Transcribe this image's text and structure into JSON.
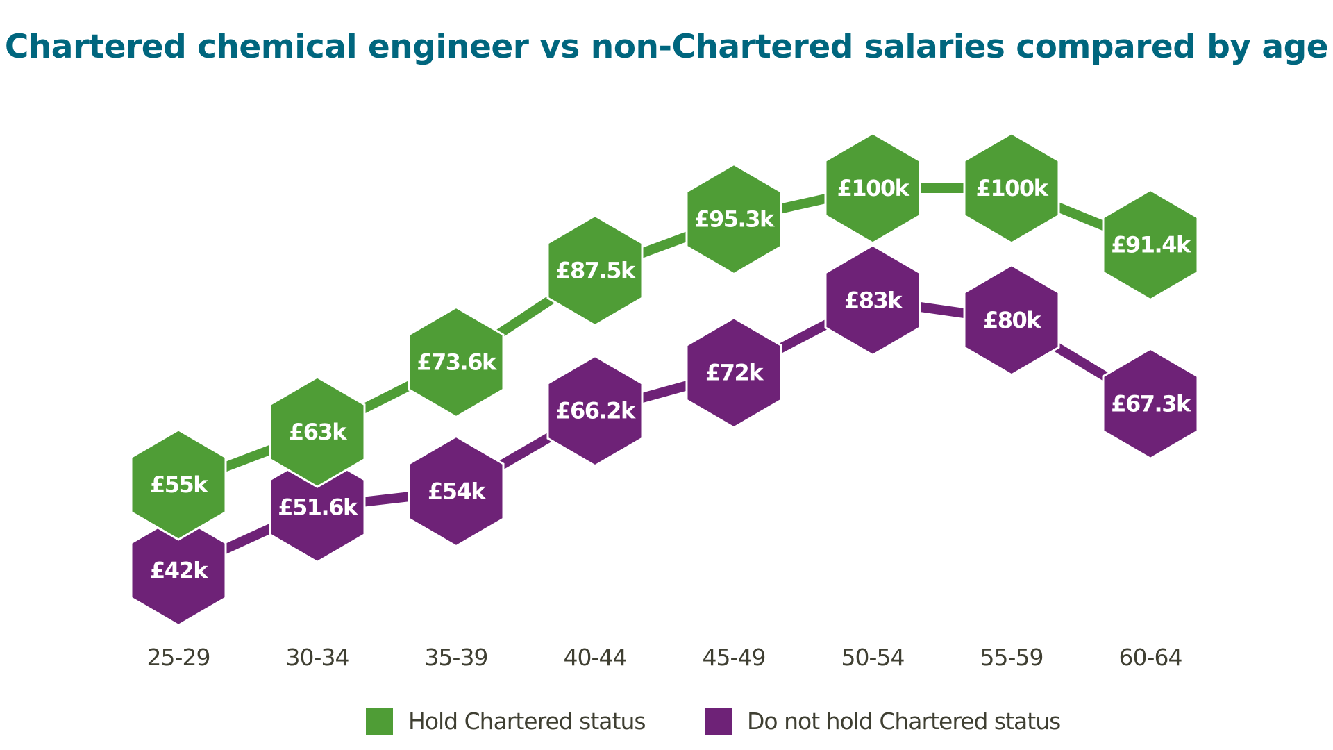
{
  "chart_data": {
    "type": "line",
    "title": "Chartered chemical engineer vs non-Chartered salaries compared by age",
    "xlabel": "",
    "ylabel": "",
    "categories": [
      "25-29",
      "30-34",
      "35-39",
      "40-44",
      "45-49",
      "50-54",
      "55-59",
      "60-64"
    ],
    "series": [
      {
        "name": "Hold Chartered status",
        "color": "#4f9d36",
        "values": [
          55,
          63,
          73.6,
          87.5,
          95.3,
          100,
          100,
          91.4
        ],
        "labels": [
          "£55k",
          "£63k",
          "£73.6k",
          "£87.5k",
          "£95.3k",
          "£100k",
          "£100k",
          "£91.4k"
        ]
      },
      {
        "name": "Do not hold Chartered status",
        "color": "#6e2277",
        "values": [
          42,
          51.6,
          54,
          66.2,
          72,
          83,
          80,
          67.3
        ],
        "labels": [
          "£42k",
          "£51.6k",
          "£54k",
          "£66.2k",
          "£72k",
          "£83k",
          "£80k",
          "£67.3k"
        ]
      }
    ],
    "units": "£ thousands",
    "marker": "hexagon",
    "grid": false,
    "yaxis_visible": false,
    "legend_position": "bottom-center"
  },
  "colors": {
    "title": "#00667e",
    "axis_text": "#3f3f32",
    "green": "#4f9d36",
    "purple": "#6e2277"
  }
}
